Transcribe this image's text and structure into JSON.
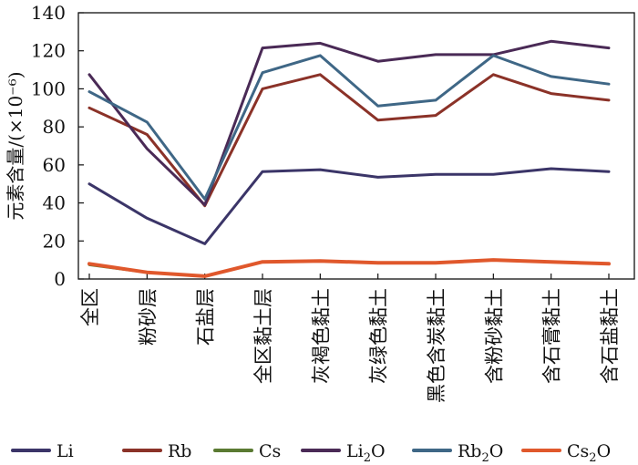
{
  "chart_data": {
    "type": "line",
    "title": "",
    "xlabel": "",
    "ylabel": "元素含量/(×10⁻⁶)",
    "ylim": [
      0,
      140
    ],
    "yticks": [
      0,
      20,
      40,
      60,
      80,
      100,
      120,
      140
    ],
    "grid": false,
    "legend_position": "bottom",
    "categories": [
      "全区",
      "粉砂层",
      "石盐层",
      "全区黏土层",
      "灰褐色黏土",
      "灰绿色黏土",
      "黑色含炭黏土",
      "含粉砂黏土",
      "含石膏黏土",
      "含石盐黏土"
    ],
    "series": [
      {
        "name": "Li",
        "label": "Li",
        "sub": "",
        "color": "#3b3568",
        "values": [
          50,
          32,
          18.5,
          56.5,
          57.5,
          53.5,
          55,
          55,
          58,
          56.5
        ]
      },
      {
        "name": "Rb",
        "label": "Rb",
        "sub": "",
        "color": "#8b3228",
        "values": [
          90,
          76,
          38.5,
          100,
          107.5,
          83.5,
          86,
          107.5,
          97.5,
          94
        ]
      },
      {
        "name": "Cs",
        "label": "Cs",
        "sub": "",
        "color": "#5a7a32",
        "values": [
          7.5,
          3.5,
          1.5,
          9,
          9.5,
          8.5,
          8.5,
          10,
          9,
          8
        ]
      },
      {
        "name": "Li2O",
        "label": "Li",
        "sub": "2",
        "suffix": "O",
        "color": "#4a2a56",
        "values": [
          107.5,
          68.5,
          39,
          121.5,
          124,
          114.5,
          118,
          118,
          125,
          121.5
        ]
      },
      {
        "name": "Rb2O",
        "label": "Rb",
        "sub": "2",
        "suffix": "O",
        "color": "#3f6786",
        "values": [
          98.5,
          82.5,
          42,
          108.5,
          117.5,
          91,
          94,
          117.5,
          106.5,
          102.5
        ]
      },
      {
        "name": "Cs2O",
        "label": "Cs",
        "sub": "2",
        "suffix": "O",
        "color": "#e0582c",
        "values": [
          8,
          3.5,
          1.5,
          9,
          9.5,
          8.5,
          8.5,
          10,
          9,
          8
        ]
      }
    ]
  }
}
